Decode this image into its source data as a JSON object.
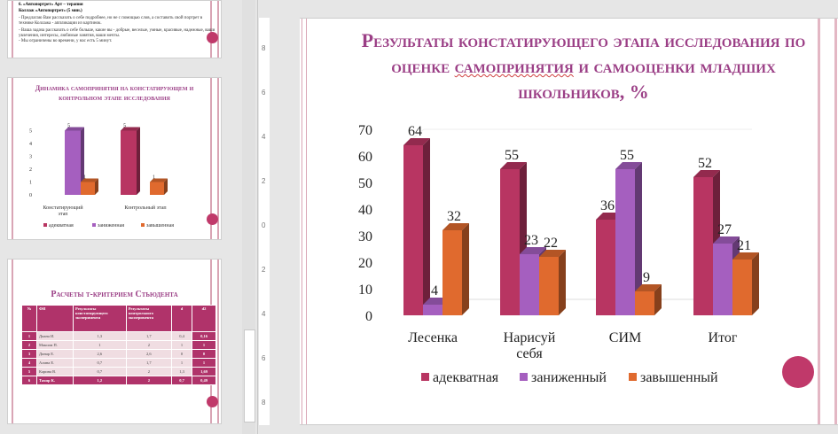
{
  "thumbnails": [
    {
      "heading": "6. «Автопортрет» Арт – терапия",
      "subheading": "Коллаж «Автопортрет» (5 мин.)",
      "lines": [
        "- Предлагаю Вам рассказать о себе подробнее, но не с помощью слов, а составить свой портрет в технике Коллажа - аппликации из картинок.",
        "- Ваша задача рассказать о себе больше, какие вы - добрые, веселые, умные, красивые, надежные, ваши увлечения, интересы, любимые занятия, ваши мечты.",
        "- Мы ограничены во времени, у нас есть 5 минут."
      ]
    },
    {
      "title": "Динамика самопринятия на констатирующем и контрольном этапе исследования",
      "chart_data": {
        "type": "bar",
        "categories": [
          "Констатирующий этап",
          "Контрольный этап"
        ],
        "series": [
          {
            "name": "адекватная",
            "values": [
              0,
              5
            ]
          },
          {
            "name": "заниженная",
            "values": [
              5,
              0
            ]
          },
          {
            "name": "завышенная",
            "values": [
              1,
              1
            ]
          }
        ],
        "yticks": [
          "0",
          "1",
          "2",
          "3",
          "4",
          "5"
        ],
        "ylim": [
          0,
          5
        ],
        "data_labels": [
          [
            "",
            "5"
          ],
          [
            "5",
            ""
          ],
          [
            "1",
            "1"
          ]
        ],
        "legend": "bottom"
      }
    },
    {
      "title": "Расчеты t-критерием Стьюдента",
      "headers": [
        "№",
        "ФИ",
        "Результаты констатирующего эксперимента",
        "Результаты контрольного эксперимента",
        "d",
        "d2"
      ],
      "rows": [
        [
          "1",
          "Диана И.",
          "1,3",
          "1,7",
          "0,4",
          "0,16"
        ],
        [
          "2",
          "Максим П.",
          "1",
          "2",
          "1",
          "1"
        ],
        [
          "3",
          "Динар Е.",
          "2,6",
          "2,6",
          "0",
          "0"
        ],
        [
          "4",
          "Алина Е.",
          "0,7",
          "1,7",
          "1",
          "1"
        ],
        [
          "5",
          "Карина В.",
          "0,7",
          "2",
          "1,3",
          "1,69"
        ],
        [
          "6",
          "Тахир К.",
          "1,2",
          "2",
          "0,7",
          "0,49"
        ]
      ]
    }
  ],
  "ruler": {
    "labels": [
      "8",
      "6",
      "4",
      "2",
      "0",
      "2",
      "4",
      "6",
      "8"
    ]
  },
  "slide": {
    "title_part1": "Результаты констатирующего этапа исследования по оценке ",
    "title_misspelled": "самопринятия",
    "title_part2": " и самооценки младших школьников, %"
  },
  "colors": {
    "accent": "#9b3f86",
    "adequate": "#b83562",
    "lowered": "#a55fbf",
    "raised": "#e06a2e",
    "border": "#d9a5b5"
  },
  "chart_data": {
    "type": "bar",
    "categories": [
      "Лесенка",
      "Нарисуй себя",
      "СИМ",
      "Итог"
    ],
    "category_lines": [
      [
        "Лесенка"
      ],
      [
        "Нарисуй",
        "себя"
      ],
      [
        "СИМ"
      ],
      [
        "Итог"
      ]
    ],
    "series": [
      {
        "name": "адекватная",
        "values": [
          64,
          55,
          36,
          52
        ]
      },
      {
        "name": "заниженный",
        "values": [
          4,
          23,
          55,
          27
        ]
      },
      {
        "name": "завышенный",
        "values": [
          32,
          22,
          9,
          21
        ]
      }
    ],
    "yticks": [
      "0",
      "10",
      "20",
      "30",
      "40",
      "50",
      "60",
      "70"
    ],
    "ylim": [
      0,
      70
    ],
    "grid": false,
    "legend": "bottom",
    "three_d": true
  }
}
